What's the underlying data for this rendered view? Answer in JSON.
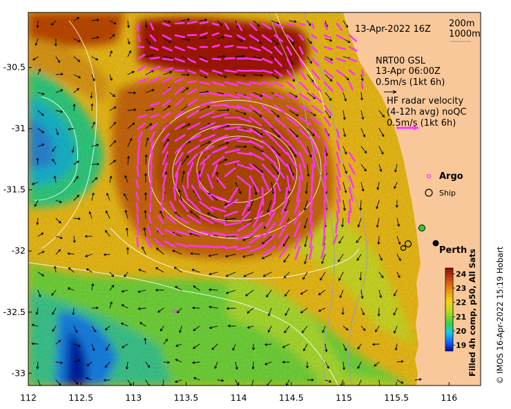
{
  "title": "13-Apr-2022 16Z",
  "depth_labels": [
    "200m",
    "1000m"
  ],
  "model_legend": [
    "NRT00 GSL",
    "13-Apr 06:00Z",
    "0.5m/s (1kt 6h)"
  ],
  "radar_legend": [
    "HF radar velocity",
    "(4-12h avg) noQC",
    "0.5m/s (1kt 6h)"
  ],
  "argo_label": "Argo",
  "ship_label": "Ship",
  "city_label": "Perth",
  "colorbar_label": "Filled 4h comp, p50, All Sats",
  "credit": "© IMOS 16-Apr-2022 15:19 Hobart",
  "colors": {
    "land": "#f9c89a",
    "radar_arrow": "#ff33ff",
    "model_arrow": "#000000",
    "contour": "#ffffff",
    "bathymetry": "#a0a0a0"
  },
  "chart_data": {
    "type": "heatmap",
    "xlim": [
      112,
      116.3
    ],
    "ylim": [
      -33.1,
      -30.05
    ],
    "x_ticks": [
      112,
      112.5,
      113,
      113.5,
      114,
      114.5,
      115,
      115.5,
      116
    ],
    "x_tick_labels": [
      "112",
      "112.5",
      "113",
      "113.5",
      "114",
      "114.5",
      "115",
      "115.5",
      "116"
    ],
    "y_ticks": [
      -30.5,
      -31,
      -31.5,
      -32,
      -32.5,
      -33
    ],
    "y_tick_labels": [
      "-30.5",
      "-31",
      "-31.5",
      "-32",
      "-32.5",
      "-33"
    ],
    "colorbar_ticks": [
      24,
      23,
      22,
      21,
      20,
      19
    ],
    "colorbar_range": [
      18.6,
      24.4
    ],
    "eddy_center": [
      113.95,
      -31.45
    ],
    "features": [
      {
        "name": "Perth",
        "lon": 115.86,
        "lat": -31.95
      },
      {
        "name": "Argo",
        "lon": 113.38,
        "lat": -32.5
      }
    ]
  }
}
